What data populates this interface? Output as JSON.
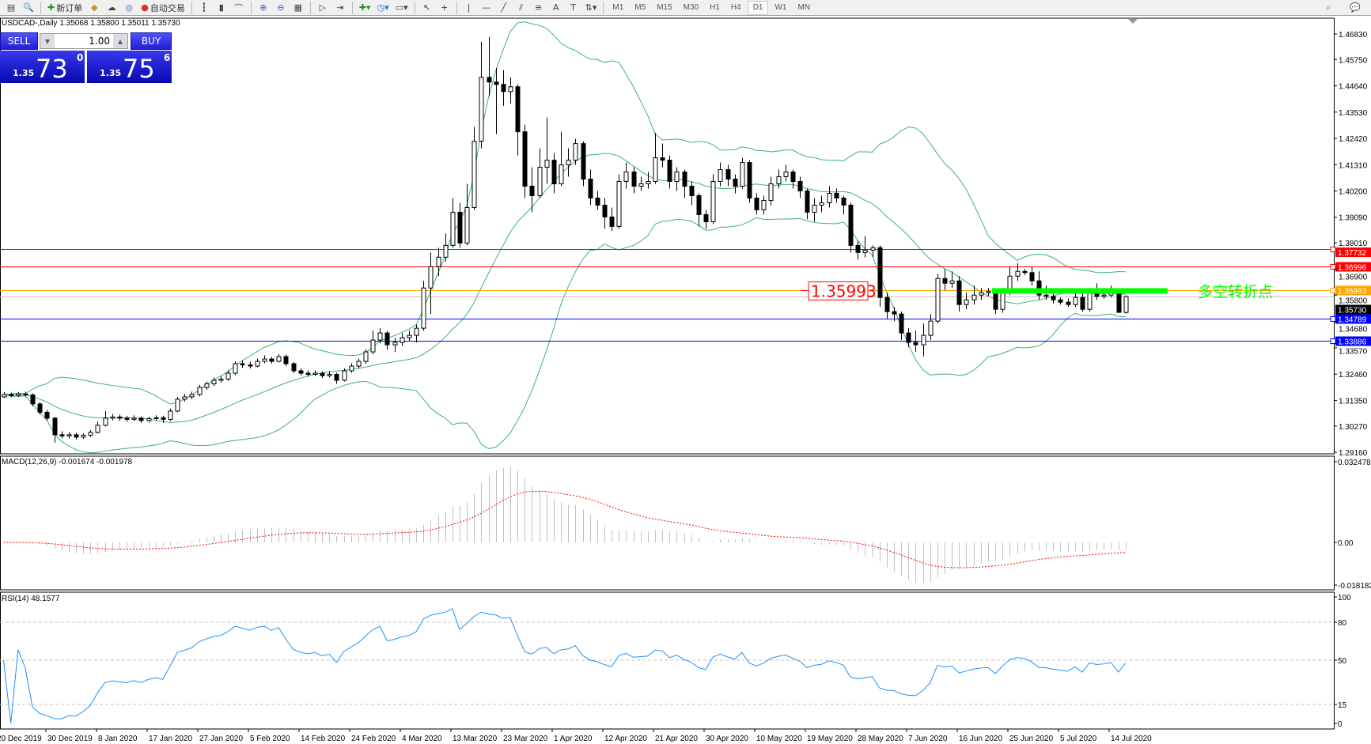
{
  "toolbar": {
    "items": [
      {
        "icon": "new-chart-icon"
      },
      {
        "icon": "zoom-window-icon"
      },
      {
        "label": "新订单",
        "icon": "new-order-icon"
      },
      {
        "icon": "market-watch-icon"
      },
      {
        "icon": "data-window-icon"
      },
      {
        "icon": "signals-icon"
      },
      {
        "label": "自动交易",
        "icon": "auto-trading-icon"
      },
      {
        "icon": "bar-chart-icon"
      },
      {
        "icon": "candlestick-icon"
      },
      {
        "icon": "line-chart-icon"
      },
      {
        "icon": "zoom-in-icon"
      },
      {
        "icon": "zoom-out-icon"
      },
      {
        "icon": "tile-windows-icon"
      },
      {
        "icon": "chart-shift-icon"
      },
      {
        "icon": "autoscroll-icon"
      },
      {
        "icon": "indicators-icon"
      },
      {
        "icon": "periods-icon"
      },
      {
        "icon": "templates-icon"
      },
      {
        "icon": "cursor-icon"
      },
      {
        "icon": "crosshair-icon"
      },
      {
        "icon": "vertical-line-icon"
      },
      {
        "icon": "horizontal-line-icon"
      },
      {
        "icon": "trendline-icon"
      },
      {
        "icon": "equidistant-channel-icon"
      },
      {
        "icon": "fibonacci-icon"
      },
      {
        "icon": "text-icon"
      },
      {
        "icon": "text-label-icon"
      },
      {
        "icon": "arrows-icon"
      }
    ],
    "timeframes": [
      "M1",
      "M5",
      "M15",
      "M30",
      "H1",
      "H4",
      "D1",
      "W1",
      "MN"
    ],
    "active_timeframe": "D1"
  },
  "chart": {
    "symbol_line": "USDCAD-,Daily  1.35068 1.35800 1.35011 1.35730",
    "trade_panel": {
      "sell": "SELL",
      "buy": "BUY",
      "lot": "1.00",
      "bid_small": "1.35",
      "bid_big": "73",
      "bid_sup": "0",
      "ask_small": "1.35",
      "ask_big": "75",
      "ask_sup": "6"
    },
    "annotation_text": "多空转折点",
    "annotation_color": "#00ff00",
    "price_label": "1.35993",
    "levels": [
      {
        "price": 1.37732,
        "label": "1.37732",
        "color": "#ff0000"
      },
      {
        "price": 1.36996,
        "label": "1.36996",
        "color": "#ff0000"
      },
      {
        "price": 1.35993,
        "label": "1.35993",
        "color": "#ffa500"
      },
      {
        "price": 1.3573,
        "label": "1.35730",
        "color": "#c0c0c0",
        "tag": "#000000"
      },
      {
        "price": 1.34789,
        "label": "1.34789",
        "color": "#0000ff"
      },
      {
        "price": 1.33886,
        "label": "1.33886",
        "color": "#0000ff"
      }
    ],
    "price_ticks": [
      "1.46830",
      "1.45750",
      "1.44640",
      "1.43530",
      "1.42420",
      "1.41310",
      "1.40200",
      "1.39090",
      "1.38010",
      "1.36900",
      "1.35800",
      "1.34680",
      "1.33570",
      "1.32460",
      "1.31350",
      "1.30270",
      "1.29160"
    ],
    "price_range": [
      1.2916,
      1.4683
    ],
    "date_labels": [
      "20 Dec 2019",
      "30 Dec 2019",
      "8 Jan 2020",
      "17 Jan 2020",
      "27 Jan 2020",
      "5 Feb 2020",
      "14 Feb 2020",
      "24 Feb 2020",
      "4 Mar 2020",
      "13 Mar 2020",
      "23 Mar 2020",
      "1 Apr 2020",
      "12 Apr 2020",
      "21 Apr 2020",
      "30 Apr 2020",
      "10 May 2020",
      "19 May 2020",
      "28 May 2020",
      "7 Jun 2020",
      "16 Jun 2020",
      "25 Jun 2020",
      "5 Jul 2020",
      "14 Jul 2020"
    ],
    "bollinger": {
      "period": 20,
      "deviation": 2,
      "color": "#3cb371"
    },
    "macd": {
      "label": "MACD(12,26,9) -0.001674 -0.001978",
      "ticks": [
        "0.032478",
        "0.00",
        "-0.018182"
      ],
      "range": [
        -0.018182,
        0.032478
      ],
      "signal_color": "#ff0000",
      "hist_color": "#c0c0c0"
    },
    "rsi": {
      "label": "RSI(14) 48.1577",
      "ticks": [
        "100",
        "80",
        "50",
        "15",
        "0"
      ],
      "levels": [
        80,
        50,
        15
      ],
      "color": "#1e90ff"
    }
  },
  "chart_data": {
    "type": "candlestick",
    "ohlc": [
      [
        1.315,
        1.317,
        1.3145,
        1.316
      ],
      [
        1.316,
        1.3168,
        1.315,
        1.3155
      ],
      [
        1.3155,
        1.317,
        1.315,
        1.3162
      ],
      [
        1.3162,
        1.3172,
        1.3152,
        1.3158
      ],
      [
        1.3158,
        1.3165,
        1.311,
        1.312
      ],
      [
        1.312,
        1.3128,
        1.3075,
        1.3085
      ],
      [
        1.3085,
        1.3095,
        1.305,
        1.306
      ],
      [
        1.306,
        1.3065,
        1.2957,
        1.299
      ],
      [
        1.299,
        1.3005,
        1.2975,
        1.2985
      ],
      [
        1.2985,
        1.3,
        1.2975,
        1.299
      ],
      [
        1.299,
        1.2998,
        1.297,
        1.298
      ],
      [
        1.298,
        1.2995,
        1.2972,
        1.2988
      ],
      [
        1.2988,
        1.301,
        1.298,
        1.3
      ],
      [
        1.3,
        1.3045,
        1.2995,
        1.303
      ],
      [
        1.303,
        1.309,
        1.3025,
        1.306
      ],
      [
        1.306,
        1.3078,
        1.305,
        1.3065
      ],
      [
        1.3065,
        1.3075,
        1.3048,
        1.306
      ],
      [
        1.306,
        1.307,
        1.3045,
        1.3055
      ],
      [
        1.3055,
        1.3072,
        1.3048,
        1.306
      ],
      [
        1.306,
        1.3068,
        1.304,
        1.305
      ],
      [
        1.305,
        1.3066,
        1.3042,
        1.3058
      ],
      [
        1.3058,
        1.3072,
        1.305,
        1.3062
      ],
      [
        1.3062,
        1.307,
        1.304,
        1.3055
      ],
      [
        1.3055,
        1.31,
        1.3048,
        1.309
      ],
      [
        1.309,
        1.315,
        1.3085,
        1.314
      ],
      [
        1.314,
        1.3162,
        1.313,
        1.315
      ],
      [
        1.315,
        1.3172,
        1.314,
        1.316
      ],
      [
        1.316,
        1.32,
        1.3152,
        1.319
      ],
      [
        1.319,
        1.3215,
        1.318,
        1.3205
      ],
      [
        1.3205,
        1.3232,
        1.3195,
        1.322
      ],
      [
        1.322,
        1.324,
        1.321,
        1.3225
      ],
      [
        1.3225,
        1.3262,
        1.3218,
        1.325
      ],
      [
        1.325,
        1.33,
        1.3242,
        1.329
      ],
      [
        1.329,
        1.3305,
        1.3272,
        1.3285
      ],
      [
        1.3285,
        1.3298,
        1.327,
        1.328
      ],
      [
        1.328,
        1.3312,
        1.3275,
        1.33
      ],
      [
        1.33,
        1.3325,
        1.3292,
        1.331
      ],
      [
        1.331,
        1.3318,
        1.329,
        1.33
      ],
      [
        1.33,
        1.333,
        1.3295,
        1.332
      ],
      [
        1.332,
        1.3328,
        1.328,
        1.329
      ],
      [
        1.329,
        1.3298,
        1.325,
        1.326
      ],
      [
        1.326,
        1.327,
        1.324,
        1.325
      ],
      [
        1.325,
        1.3262,
        1.3235,
        1.3245
      ],
      [
        1.3245,
        1.3262,
        1.3238,
        1.325
      ],
      [
        1.325,
        1.3258,
        1.323,
        1.324
      ],
      [
        1.324,
        1.3258,
        1.3232,
        1.3245
      ],
      [
        1.3245,
        1.3252,
        1.3205,
        1.322
      ],
      [
        1.322,
        1.327,
        1.3215,
        1.326
      ],
      [
        1.326,
        1.3292,
        1.3252,
        1.328
      ],
      [
        1.328,
        1.3312,
        1.327,
        1.33
      ],
      [
        1.33,
        1.3352,
        1.329,
        1.334
      ],
      [
        1.334,
        1.343,
        1.333,
        1.339
      ],
      [
        1.339,
        1.344,
        1.3375,
        1.342
      ],
      [
        1.342,
        1.3428,
        1.335,
        1.337
      ],
      [
        1.337,
        1.34,
        1.334,
        1.338
      ],
      [
        1.338,
        1.342,
        1.3365,
        1.34
      ],
      [
        1.34,
        1.343,
        1.3385,
        1.341
      ],
      [
        1.341,
        1.3455,
        1.338,
        1.344
      ],
      [
        1.344,
        1.364,
        1.343,
        1.361
      ],
      [
        1.361,
        1.376,
        1.35,
        1.37
      ],
      [
        1.37,
        1.378,
        1.366,
        1.374
      ],
      [
        1.374,
        1.384,
        1.372,
        1.379
      ],
      [
        1.379,
        1.399,
        1.378,
        1.393
      ],
      [
        1.393,
        1.397,
        1.378,
        1.38
      ],
      [
        1.38,
        1.405,
        1.379,
        1.395
      ],
      [
        1.395,
        1.429,
        1.394,
        1.423
      ],
      [
        1.423,
        1.465,
        1.42,
        1.45
      ],
      [
        1.45,
        1.467,
        1.442,
        1.448
      ],
      [
        1.448,
        1.454,
        1.426,
        1.447
      ],
      [
        1.447,
        1.453,
        1.438,
        1.444
      ],
      [
        1.444,
        1.45,
        1.439,
        1.446
      ],
      [
        1.446,
        1.447,
        1.417,
        1.427
      ],
      [
        1.427,
        1.43,
        1.399,
        1.404
      ],
      [
        1.404,
        1.412,
        1.393,
        1.4
      ],
      [
        1.4,
        1.42,
        1.399,
        1.412
      ],
      [
        1.412,
        1.433,
        1.405,
        1.415
      ],
      [
        1.415,
        1.418,
        1.401,
        1.405
      ],
      [
        1.405,
        1.427,
        1.404,
        1.413
      ],
      [
        1.413,
        1.42,
        1.408,
        1.415
      ],
      [
        1.415,
        1.424,
        1.413,
        1.422
      ],
      [
        1.422,
        1.423,
        1.404,
        1.407
      ],
      [
        1.407,
        1.411,
        1.396,
        1.399
      ],
      [
        1.399,
        1.402,
        1.394,
        1.396
      ],
      [
        1.396,
        1.399,
        1.386,
        1.391
      ],
      [
        1.391,
        1.395,
        1.385,
        1.387
      ],
      [
        1.387,
        1.409,
        1.386,
        1.406
      ],
      [
        1.406,
        1.414,
        1.403,
        1.41
      ],
      [
        1.41,
        1.412,
        1.401,
        1.404
      ],
      [
        1.404,
        1.408,
        1.402,
        1.405
      ],
      [
        1.405,
        1.41,
        1.403,
        1.406
      ],
      [
        1.406,
        1.4265,
        1.405,
        1.416
      ],
      [
        1.416,
        1.422,
        1.412,
        1.415
      ],
      [
        1.415,
        1.417,
        1.403,
        1.406
      ],
      [
        1.406,
        1.412,
        1.402,
        1.41
      ],
      [
        1.41,
        1.411,
        1.399,
        1.404
      ],
      [
        1.404,
        1.406,
        1.396,
        1.4
      ],
      [
        1.4,
        1.401,
        1.387,
        1.392
      ],
      [
        1.392,
        1.394,
        1.386,
        1.389
      ],
      [
        1.389,
        1.409,
        1.388,
        1.406
      ],
      [
        1.406,
        1.414,
        1.404,
        1.411
      ],
      [
        1.411,
        1.413,
        1.404,
        1.407
      ],
      [
        1.407,
        1.409,
        1.401,
        1.404
      ],
      [
        1.404,
        1.416,
        1.403,
        1.414
      ],
      [
        1.414,
        1.415,
        1.397,
        1.399
      ],
      [
        1.399,
        1.401,
        1.392,
        1.394
      ],
      [
        1.394,
        1.4,
        1.392,
        1.398
      ],
      [
        1.398,
        1.408,
        1.396,
        1.405
      ],
      [
        1.405,
        1.411,
        1.403,
        1.408
      ],
      [
        1.408,
        1.413,
        1.406,
        1.41
      ],
      [
        1.41,
        1.411,
        1.403,
        1.406
      ],
      [
        1.406,
        1.408,
        1.399,
        1.402
      ],
      [
        1.402,
        1.403,
        1.39,
        1.393
      ],
      [
        1.393,
        1.399,
        1.389,
        1.396
      ],
      [
        1.396,
        1.4,
        1.393,
        1.397
      ],
      [
        1.397,
        1.404,
        1.395,
        1.401
      ],
      [
        1.401,
        1.403,
        1.397,
        1.399
      ],
      [
        1.399,
        1.4,
        1.392,
        1.396
      ],
      [
        1.396,
        1.397,
        1.376,
        1.379
      ],
      [
        1.379,
        1.381,
        1.373,
        1.376
      ],
      [
        1.376,
        1.383,
        1.374,
        1.377
      ],
      [
        1.377,
        1.379,
        1.374,
        1.378
      ],
      [
        1.378,
        1.379,
        1.353,
        1.357
      ],
      [
        1.357,
        1.359,
        1.348,
        1.351
      ],
      [
        1.351,
        1.353,
        1.347,
        1.35
      ],
      [
        1.35,
        1.351,
        1.339,
        1.342
      ],
      [
        1.342,
        1.344,
        1.336,
        1.338
      ],
      [
        1.338,
        1.343,
        1.334,
        1.337
      ],
      [
        1.337,
        1.346,
        1.332,
        1.341
      ],
      [
        1.341,
        1.35,
        1.339,
        1.347
      ],
      [
        1.347,
        1.367,
        1.346,
        1.365
      ],
      [
        1.365,
        1.369,
        1.36,
        1.363
      ],
      [
        1.363,
        1.368,
        1.361,
        1.364
      ],
      [
        1.364,
        1.366,
        1.351,
        1.354
      ],
      [
        1.354,
        1.359,
        1.352,
        1.356
      ],
      [
        1.356,
        1.362,
        1.354,
        1.358
      ],
      [
        1.358,
        1.361,
        1.356,
        1.359
      ],
      [
        1.359,
        1.361,
        1.3575,
        1.3595
      ],
      [
        1.3595,
        1.36,
        1.35,
        1.352
      ],
      [
        1.352,
        1.361,
        1.3505,
        1.359
      ],
      [
        1.359,
        1.37,
        1.358,
        1.366
      ],
      [
        1.366,
        1.3715,
        1.364,
        1.368
      ],
      [
        1.368,
        1.369,
        1.3665,
        1.3675
      ],
      [
        1.3675,
        1.37,
        1.362,
        1.364
      ],
      [
        1.364,
        1.368,
        1.356,
        1.358
      ],
      [
        1.358,
        1.362,
        1.356,
        1.3575
      ],
      [
        1.3575,
        1.359,
        1.3545,
        1.356
      ],
      [
        1.356,
        1.357,
        1.354,
        1.355
      ],
      [
        1.355,
        1.3565,
        1.353,
        1.354
      ],
      [
        1.354,
        1.36,
        1.353,
        1.357
      ],
      [
        1.357,
        1.36,
        1.351,
        1.352
      ],
      [
        1.352,
        1.361,
        1.351,
        1.359
      ],
      [
        1.359,
        1.363,
        1.356,
        1.3575
      ],
      [
        1.3575,
        1.361,
        1.3565,
        1.358
      ],
      [
        1.358,
        1.362,
        1.357,
        1.359
      ],
      [
        1.359,
        1.36,
        1.3505,
        1.3507
      ],
      [
        1.35068,
        1.358,
        1.35011,
        1.3573
      ]
    ]
  }
}
